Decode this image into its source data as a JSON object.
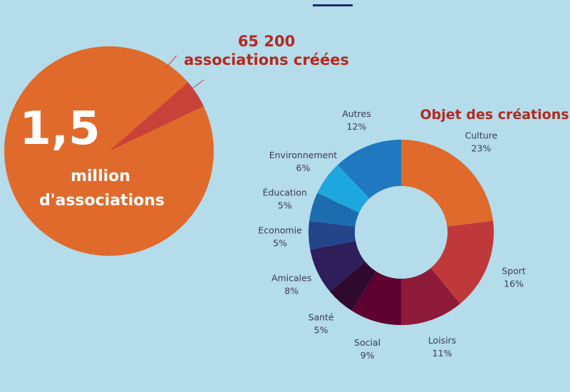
{
  "colors": {
    "background": "#b4dcea",
    "top_bar": "#1e2a6e",
    "big_pie": "#e06a2c",
    "big_slice": "#c9423a",
    "headline": "#b22a22"
  },
  "left_panel": {
    "big_number": "1,5",
    "big_unit": "million",
    "big_caption": "d'associations",
    "created_number": "65 200",
    "created_caption": "associations créées",
    "total_share": 1500000,
    "created_share": 65200
  },
  "chart_data": {
    "type": "pie",
    "title": "Objet des créations",
    "donut": true,
    "categories": [
      "Culture",
      "Sport",
      "Loisirs",
      "Social",
      "Santé",
      "Amicales",
      "Economie",
      "Éducation",
      "Environnement",
      "Autres"
    ],
    "values": [
      23,
      16,
      11,
      9,
      5,
      8,
      5,
      5,
      6,
      12
    ],
    "value_labels": [
      "23%",
      "16%",
      "11%",
      "9%",
      "5%",
      "8%",
      "5%",
      "5%",
      "6%",
      "12%"
    ],
    "colors": [
      "#e06a2c",
      "#c0393a",
      "#8e1a3a",
      "#5e0232",
      "#2f0a2e",
      "#2e1e5a",
      "#24458a",
      "#1c6db0",
      "#1ea6de",
      "#1f78c0"
    ]
  }
}
